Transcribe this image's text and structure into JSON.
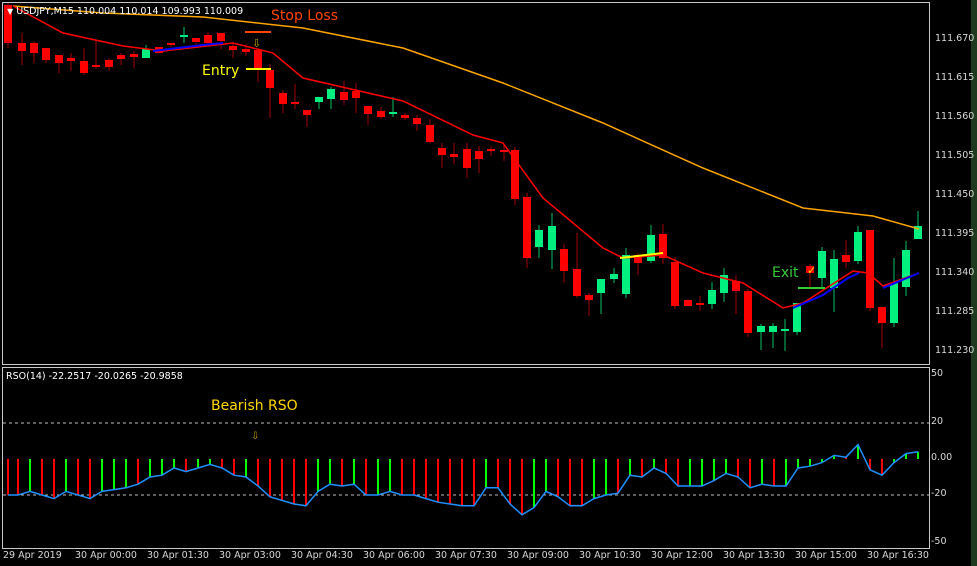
{
  "chart_data": {
    "type": "candlestick",
    "symbol": "USDJPY",
    "timeframe": "M15",
    "header": "USDJPY,M15  110.004 110.014 109.993 110.009",
    "price_axis": {
      "ticks": [
        "111.670",
        "111.615",
        "111.560",
        "111.505",
        "111.450",
        "111.395",
        "111.340",
        "111.285",
        "111.230"
      ],
      "range": [
        111.21,
        111.72
      ]
    },
    "time_axis": {
      "ticks": [
        "29 Apr 2019",
        "30 Apr 00:00",
        "30 Apr 01:30",
        "30 Apr 03:00",
        "30 Apr 04:30",
        "30 Apr 06:00",
        "30 Apr 07:30",
        "30 Apr 09:00",
        "30 Apr 10:30",
        "30 Apr 12:00",
        "30 Apr 13:30",
        "30 Apr 15:00",
        "30 Apr 16:30"
      ]
    },
    "annotations": [
      {
        "text": "Stop Loss",
        "color": "#ff4500"
      },
      {
        "text": "Entry",
        "color": "#ffff00"
      },
      {
        "text": "Exit ✓",
        "color": "#32cd32"
      },
      {
        "text": "Bearish RSO",
        "color": "#ffd700"
      }
    ],
    "indicator": {
      "name": "RSO(14)",
      "label": "RSO(14) -22.2517 -20.0265 -20.9858",
      "values_shown": [
        -22.2517,
        -20.0265,
        -20.9858
      ],
      "levels": [
        20,
        0,
        -20
      ],
      "axis_ticks": [
        "50",
        "20",
        "0.00",
        "-20",
        "-50"
      ],
      "range": [
        -50,
        50
      ]
    },
    "colors": {
      "bull": "#00f080",
      "bear": "#ff0000",
      "ma_fast": "#ff0000",
      "ma_slow": "#ffa500",
      "ma_up": "#0000ff",
      "ma_flat": "#ffff00",
      "rso_line": "#1e90ff",
      "hist_up": "#00ff00",
      "hist_down": "#ff0000"
    }
  },
  "header": {
    "menu_icon": "▼",
    "title": "USDJPY,M15  110.004 110.014 109.993 110.009"
  },
  "annotations": {
    "stop_loss": "Stop Loss",
    "entry": "Entry",
    "exit": "Exit",
    "exit_check": "✓",
    "bearish_rso": "Bearish RSO",
    "arrow": "⇩"
  },
  "rso": {
    "label": "RSO(14) -22.2517 -20.0265 -20.9858"
  },
  "price_ticks": [
    "111.670",
    "111.615",
    "111.560",
    "111.505",
    "111.450",
    "111.395",
    "111.340",
    "111.285",
    "111.230"
  ],
  "rso_ticks": [
    "50",
    "20",
    "0.00",
    "-20",
    "-50"
  ],
  "time_ticks": [
    "29 Apr 2019",
    "30 Apr 00:00",
    "30 Apr 01:30",
    "30 Apr 03:00",
    "30 Apr 04:30",
    "30 Apr 06:00",
    "30 Apr 07:30",
    "30 Apr 09:00",
    "30 Apr 10:30",
    "30 Apr 12:00",
    "30 Apr 13:30",
    "30 Apr 15:00",
    "30 Apr 16:30"
  ]
}
